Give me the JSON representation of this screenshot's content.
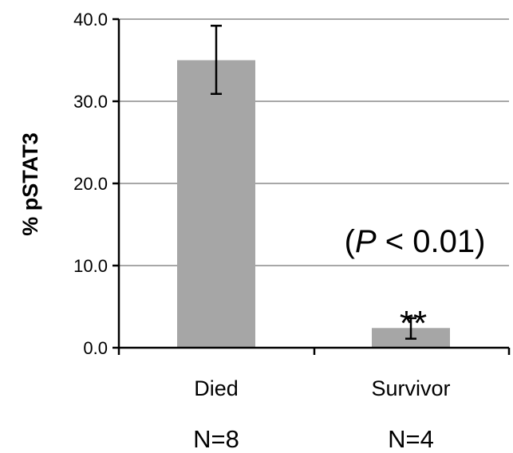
{
  "chart_data": {
    "type": "bar",
    "title": "",
    "xlabel": "",
    "ylabel": "% pSTAT3",
    "ylim": [
      0,
      40
    ],
    "yticks": [
      "0.0",
      "10.0",
      "20.0",
      "30.0",
      "40.0"
    ],
    "categories": [
      "Died",
      "Survivor"
    ],
    "values": [
      35.0,
      2.4
    ],
    "error_low": [
      30.9,
      1.1
    ],
    "error_high": [
      39.2,
      3.6
    ],
    "sample_sizes": [
      "N=8",
      "N=4"
    ],
    "significance_marker": "**",
    "annotation": {
      "prefix": "(",
      "italic": "P",
      "suffix": " < 0.01)"
    },
    "grid": true,
    "bar_color": "#a6a6a6",
    "grid_color": "#8c8c8c"
  }
}
